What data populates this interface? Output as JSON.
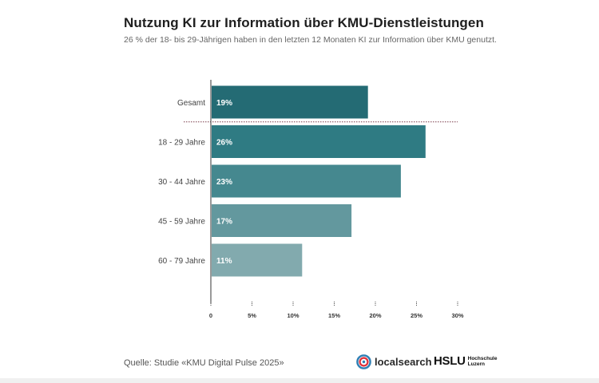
{
  "title": "Nutzung KI zur Information über KMU-Dienstleistungen",
  "subtitle": "26 % der 18- bis 29-Jährigen haben in den letzten 12 Monaten KI zur Information über KMU genutzt.",
  "chart_data": {
    "type": "bar",
    "orientation": "horizontal",
    "categories": [
      "Gesamt",
      "18 - 29 Jahre",
      "30 - 44 Jahre",
      "45 - 59 Jahre",
      "60 - 79 Jahre"
    ],
    "values": [
      19,
      26,
      23,
      17,
      11
    ],
    "value_labels": [
      "19%",
      "26%",
      "23%",
      "17%",
      "11%"
    ],
    "bar_colors": [
      "#246b74",
      "#2f7b83",
      "#45888f",
      "#63989e",
      "#82aaae"
    ],
    "xlim": [
      0,
      30
    ],
    "xticks": [
      0,
      5,
      10,
      15,
      20,
      25,
      30
    ],
    "xtick_labels": [
      "0",
      "5%",
      "10%",
      "15%",
      "20%",
      "25%",
      "30%"
    ],
    "separator_after": "Gesamt",
    "xlabel": "",
    "ylabel": ""
  },
  "footer": {
    "source": "Quelle: Studie «KMU Digital Pulse 2025»",
    "logo_localsearch": "localsearch",
    "logo_hslu": "HSLU",
    "logo_hslu_sub": [
      "Hochschule",
      "Luzern"
    ]
  }
}
